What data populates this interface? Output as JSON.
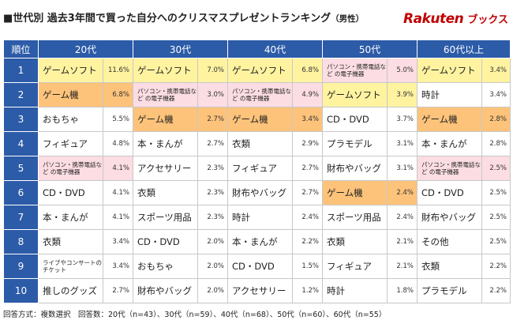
{
  "header": {
    "title": "■世代別 過去3年間で買った自分へのクリスマスプレゼントランキング",
    "subtitle": "（男性）",
    "brand_logo": "Rakuten",
    "brand_name": "ブックス"
  },
  "table": {
    "rank_header": "順位",
    "columns": [
      {
        "label": "20代",
        "items": [
          {
            "name": "ゲームソフト",
            "pct": "11.6%",
            "hl": "yellow"
          },
          {
            "name": "ゲーム機",
            "pct": "6.8%",
            "hl": "orange"
          },
          {
            "name": "おもちゃ",
            "pct": "5.5%",
            "hl": ""
          },
          {
            "name": "フィギュア",
            "pct": "4.8%",
            "hl": ""
          },
          {
            "name": "パソコン・携帯電話など の電子機器",
            "pct": "4.1%",
            "hl": "pink",
            "small": true
          },
          {
            "name": "CD・DVD",
            "pct": "4.1%",
            "hl": ""
          },
          {
            "name": "本・まんが",
            "pct": "4.1%",
            "hl": ""
          },
          {
            "name": "衣類",
            "pct": "3.4%",
            "hl": ""
          },
          {
            "name": "ライブやコンサートのチケット",
            "pct": "3.4%",
            "hl": "",
            "small": true
          },
          {
            "name": "推しのグッズ",
            "pct": "2.7%",
            "hl": ""
          }
        ]
      },
      {
        "label": "30代",
        "items": [
          {
            "name": "ゲームソフト",
            "pct": "7.0%",
            "hl": "yellow"
          },
          {
            "name": "パソコン・携帯電話など の電子機器",
            "pct": "3.0%",
            "hl": "pink",
            "small": true
          },
          {
            "name": "ゲーム機",
            "pct": "2.7%",
            "hl": "orange"
          },
          {
            "name": "本・まんが",
            "pct": "2.7%",
            "hl": ""
          },
          {
            "name": "アクセサリー",
            "pct": "2.3%",
            "hl": ""
          },
          {
            "name": "衣類",
            "pct": "2.3%",
            "hl": ""
          },
          {
            "name": "スポーツ用品",
            "pct": "2.3%",
            "hl": ""
          },
          {
            "name": "CD・DVD",
            "pct": "2.0%",
            "hl": ""
          },
          {
            "name": "おもちゃ",
            "pct": "2.0%",
            "hl": ""
          },
          {
            "name": "財布やバッグ",
            "pct": "2.0%",
            "hl": ""
          }
        ]
      },
      {
        "label": "40代",
        "items": [
          {
            "name": "ゲームソフト",
            "pct": "6.8%",
            "hl": "yellow"
          },
          {
            "name": "パソコン・携帯電話など の電子機器",
            "pct": "4.9%",
            "hl": "pink",
            "small": true
          },
          {
            "name": "ゲーム機",
            "pct": "3.4%",
            "hl": "orange"
          },
          {
            "name": "衣類",
            "pct": "2.9%",
            "hl": ""
          },
          {
            "name": "フィギュア",
            "pct": "2.7%",
            "hl": ""
          },
          {
            "name": "財布やバッグ",
            "pct": "2.7%",
            "hl": ""
          },
          {
            "name": "時計",
            "pct": "2.4%",
            "hl": ""
          },
          {
            "name": "本・まんが",
            "pct": "2.2%",
            "hl": ""
          },
          {
            "name": "CD・DVD",
            "pct": "1.5%",
            "hl": ""
          },
          {
            "name": "アクセサリー",
            "pct": "1.2%",
            "hl": ""
          }
        ]
      },
      {
        "label": "50代",
        "items": [
          {
            "name": "パソコン・携帯電話など の電子機器",
            "pct": "5.0%",
            "hl": "pink",
            "small": true
          },
          {
            "name": "ゲームソフト",
            "pct": "3.9%",
            "hl": "yellow"
          },
          {
            "name": "CD・DVD",
            "pct": "3.7%",
            "hl": ""
          },
          {
            "name": "プラモデル",
            "pct": "3.1%",
            "hl": ""
          },
          {
            "name": "財布やバッグ",
            "pct": "3.1%",
            "hl": ""
          },
          {
            "name": "ゲーム機",
            "pct": "2.4%",
            "hl": "orange"
          },
          {
            "name": "スポーツ用品",
            "pct": "2.4%",
            "hl": ""
          },
          {
            "name": "衣類",
            "pct": "2.1%",
            "hl": ""
          },
          {
            "name": "フィギュア",
            "pct": "2.1%",
            "hl": ""
          },
          {
            "name": "時計",
            "pct": "1.8%",
            "hl": ""
          }
        ]
      },
      {
        "label": "60代以上",
        "items": [
          {
            "name": "ゲームソフト",
            "pct": "3.4%",
            "hl": "yellow"
          },
          {
            "name": "時計",
            "pct": "3.4%",
            "hl": ""
          },
          {
            "name": "ゲーム機",
            "pct": "2.8%",
            "hl": "orange"
          },
          {
            "name": "本・まんが",
            "pct": "2.8%",
            "hl": ""
          },
          {
            "name": "パソコン・携帯電話など の電子機器",
            "pct": "2.5%",
            "hl": "pink",
            "small": true
          },
          {
            "name": "CD・DVD",
            "pct": "2.5%",
            "hl": ""
          },
          {
            "name": "財布やバッグ",
            "pct": "2.5%",
            "hl": ""
          },
          {
            "name": "その他",
            "pct": "2.5%",
            "hl": ""
          },
          {
            "name": "衣類",
            "pct": "2.2%",
            "hl": ""
          },
          {
            "name": "プラモデル",
            "pct": "2.2%",
            "hl": ""
          }
        ]
      }
    ]
  },
  "footer": "回答方式：複数選択　回答数：20代（n=43）、30代（n=59）、40代（n=68）、50代（n=60）、60代（n=55）"
}
